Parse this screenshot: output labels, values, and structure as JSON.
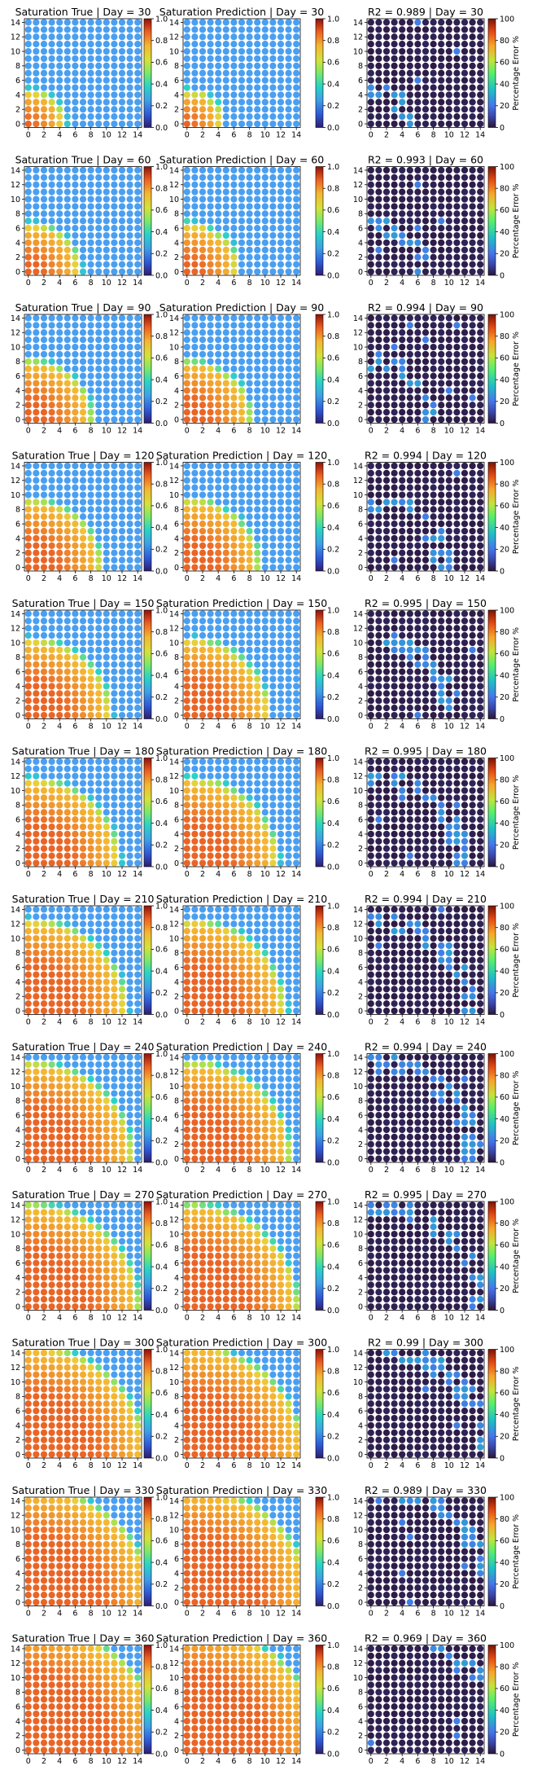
{
  "figure": {
    "row_days": [
      30,
      60,
      90,
      120,
      150,
      180,
      210,
      240,
      270,
      300,
      330,
      360
    ],
    "r2_values": [
      "0.989",
      "0.993",
      "0.994",
      "0.994",
      "0.995",
      "0.995",
      "0.994",
      "0.994",
      "0.995",
      "0.99",
      "0.989",
      "0.969"
    ],
    "true_title_prefix": "Saturation True | Day = ",
    "pred_title_prefix": "Saturation Prediction | Day = ",
    "error_title_prefix": "R2 = ",
    "error_title_mid": " | Day = ",
    "saturation_colorbar_ticks": [
      "0.0",
      "0.2",
      "0.4",
      "0.6",
      "0.8",
      "1.0"
    ],
    "error_colorbar_ticks": [
      "0",
      "20",
      "40",
      "60",
      "80",
      "100"
    ],
    "error_colorbar_label": "Percentage Error %",
    "axis_ticks": [
      "0",
      "2",
      "4",
      "6",
      "8",
      "10",
      "12",
      "14"
    ],
    "colors": {
      "background": "#ffffff",
      "low_saturation": "#4a9ff0",
      "mid_saturation": "#e9c13a",
      "high_saturation": "#e8632a",
      "low_error": "#2b1638",
      "mid_error": "#1fc1c4",
      "high_error": "#a0250a"
    }
  },
  "chart_data": {
    "type": "scatter",
    "layout": "12 rows x 3 panels: true saturation, predicted saturation, percentage error",
    "grid_points": 15,
    "x": [
      0,
      14
    ],
    "y": [
      0,
      14
    ],
    "xlim": [
      -0.5,
      14.5
    ],
    "ylim": [
      -0.5,
      14.5
    ],
    "saturation_colorbar_range": [
      0,
      1
    ],
    "error_colorbar_range": [
      0,
      100
    ],
    "colormaps": {
      "saturation": "jet-like",
      "error": "turbo-like"
    },
    "front_radius_by_day": [
      4.5,
      6.5,
      8.0,
      9.2,
      10.4,
      11.5,
      12.4,
      13.2,
      14.0,
      14.8,
      15.6,
      17.0
    ],
    "errors_note": "error panels mostly near 0%, with scattered points around 20–30% along the saturation front"
  }
}
